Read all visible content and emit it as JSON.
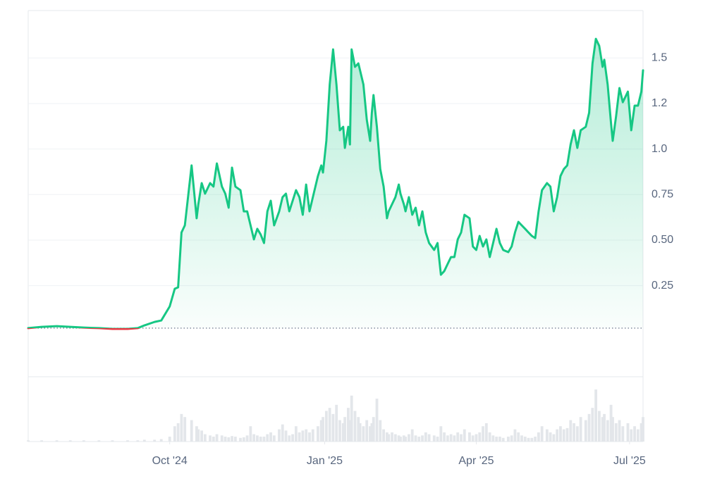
{
  "chart_data": {
    "type": "line",
    "x": [
      0,
      8,
      17,
      25,
      33,
      42,
      50,
      59,
      65,
      69,
      75,
      79,
      84,
      87,
      89,
      91,
      93,
      97,
      100,
      101,
      103,
      105,
      108,
      110,
      112,
      115,
      117,
      119,
      121,
      123,
      126,
      128,
      130,
      132,
      134,
      136,
      138,
      140,
      142,
      144,
      146,
      149,
      151,
      153,
      155,
      157,
      159,
      161,
      163,
      165,
      167,
      169,
      172,
      174,
      175,
      177,
      179,
      181,
      183,
      185,
      187,
      188,
      190,
      191,
      192,
      194,
      196,
      197,
      199,
      201,
      203,
      204,
      205,
      207,
      209,
      211,
      213,
      214,
      216,
      218,
      220,
      221,
      223,
      224,
      226,
      228,
      230,
      232,
      234,
      236,
      238,
      241,
      243,
      245,
      247,
      249,
      251,
      253,
      255,
      257,
      259,
      262,
      264,
      266,
      268,
      270,
      272,
      274,
      276,
      278,
      280,
      282,
      285,
      287,
      289,
      291,
      293,
      295,
      297,
      299,
      301,
      303,
      305,
      308,
      310,
      312,
      314,
      316,
      318,
      320,
      322,
      324,
      326,
      328,
      331,
      333,
      335,
      337,
      339,
      341,
      342,
      344,
      346,
      347,
      349,
      351,
      353,
      356,
      358,
      360,
      362,
      364,
      365
    ],
    "series": [
      {
        "color": "#16c784",
        "values": [
          0.017,
          0.024,
          0.028,
          0.024,
          0.02,
          0.017,
          0.013,
          0.013,
          0.017,
          0.032,
          0.051,
          0.059,
          0.136,
          0.233,
          0.241,
          0.542,
          0.581,
          0.91,
          0.62,
          0.697,
          0.813,
          0.755,
          0.813,
          0.794,
          0.921,
          0.794,
          0.755,
          0.678,
          0.898,
          0.794,
          0.774,
          0.658,
          0.658,
          0.581,
          0.504,
          0.562,
          0.531,
          0.484,
          0.658,
          0.716,
          0.581,
          0.658,
          0.736,
          0.755,
          0.658,
          0.716,
          0.774,
          0.736,
          0.639,
          0.805,
          0.658,
          0.736,
          0.852,
          0.91,
          0.871,
          1.045,
          1.354,
          1.547,
          1.354,
          1.103,
          1.122,
          1.006,
          1.122,
          1.025,
          1.547,
          1.451,
          1.47,
          1.432,
          1.354,
          1.161,
          1.045,
          1.199,
          1.296,
          1.122,
          0.89,
          0.794,
          0.62,
          0.658,
          0.697,
          0.736,
          0.805,
          0.755,
          0.697,
          0.658,
          0.736,
          0.639,
          0.678,
          0.581,
          0.658,
          0.542,
          0.484,
          0.446,
          0.484,
          0.31,
          0.33,
          0.369,
          0.407,
          0.407,
          0.504,
          0.542,
          0.639,
          0.62,
          0.465,
          0.446,
          0.523,
          0.465,
          0.504,
          0.407,
          0.484,
          0.562,
          0.484,
          0.446,
          0.434,
          0.465,
          0.542,
          0.6,
          0.581,
          0.562,
          0.542,
          0.523,
          0.511,
          0.658,
          0.774,
          0.813,
          0.794,
          0.658,
          0.736,
          0.852,
          0.89,
          0.91,
          1.025,
          1.103,
          1.006,
          1.103,
          1.122,
          1.199,
          1.47,
          1.605,
          1.566,
          1.451,
          1.49,
          1.354,
          1.141,
          1.045,
          1.18,
          1.335,
          1.257,
          1.315,
          1.103,
          1.238,
          1.238,
          1.315,
          1.432
        ]
      }
    ],
    "down_color": "#ea3943",
    "baseline": 0.017,
    "xlim": [
      0,
      365
    ],
    "xticks": [
      {
        "value": 84,
        "label": "Oct '24"
      },
      {
        "value": 176,
        "label": "Jan '25"
      },
      {
        "value": 266,
        "label": "Apr '25"
      },
      {
        "value": 357,
        "label": "Jul '25"
      }
    ],
    "ylim": [
      -0.25,
      1.76
    ],
    "yticks": [
      0.25,
      {
        "value": 0.5,
        "label": "0.50"
      },
      0.75,
      {
        "value": 1,
        "label": "1.0"
      },
      {
        "value": 1.25,
        "label": "1.2"
      },
      1.5
    ],
    "grid": true,
    "volume": {
      "color": "#e3e6ea",
      "ylim": [
        0,
        100
      ],
      "values": [
        2,
        2,
        2,
        2,
        2,
        2,
        2,
        2,
        2,
        3,
        3,
        4,
        8,
        25,
        30,
        45,
        40,
        35,
        25,
        20,
        18,
        12,
        10,
        8,
        12,
        10,
        8,
        7,
        9,
        8,
        6,
        7,
        10,
        25,
        12,
        10,
        8,
        8,
        12,
        15,
        10,
        20,
        28,
        18,
        10,
        12,
        25,
        15,
        18,
        20,
        15,
        20,
        25,
        35,
        40,
        50,
        55,
        45,
        60,
        35,
        30,
        40,
        55,
        35,
        75,
        50,
        40,
        30,
        25,
        35,
        25,
        30,
        40,
        70,
        35,
        20,
        15,
        12,
        15,
        12,
        10,
        8,
        10,
        8,
        12,
        20,
        10,
        8,
        10,
        15,
        12,
        10,
        8,
        25,
        15,
        10,
        12,
        10,
        15,
        12,
        20,
        15,
        10,
        12,
        15,
        25,
        30,
        15,
        10,
        8,
        8,
        6,
        8,
        10,
        20,
        15,
        10,
        8,
        6,
        6,
        8,
        15,
        25,
        20,
        15,
        12,
        20,
        25,
        20,
        22,
        35,
        30,
        25,
        40,
        35,
        45,
        55,
        85,
        50,
        40,
        45,
        35,
        60,
        40,
        30,
        35,
        25,
        30,
        20,
        25,
        20,
        30,
        40
      ]
    }
  }
}
